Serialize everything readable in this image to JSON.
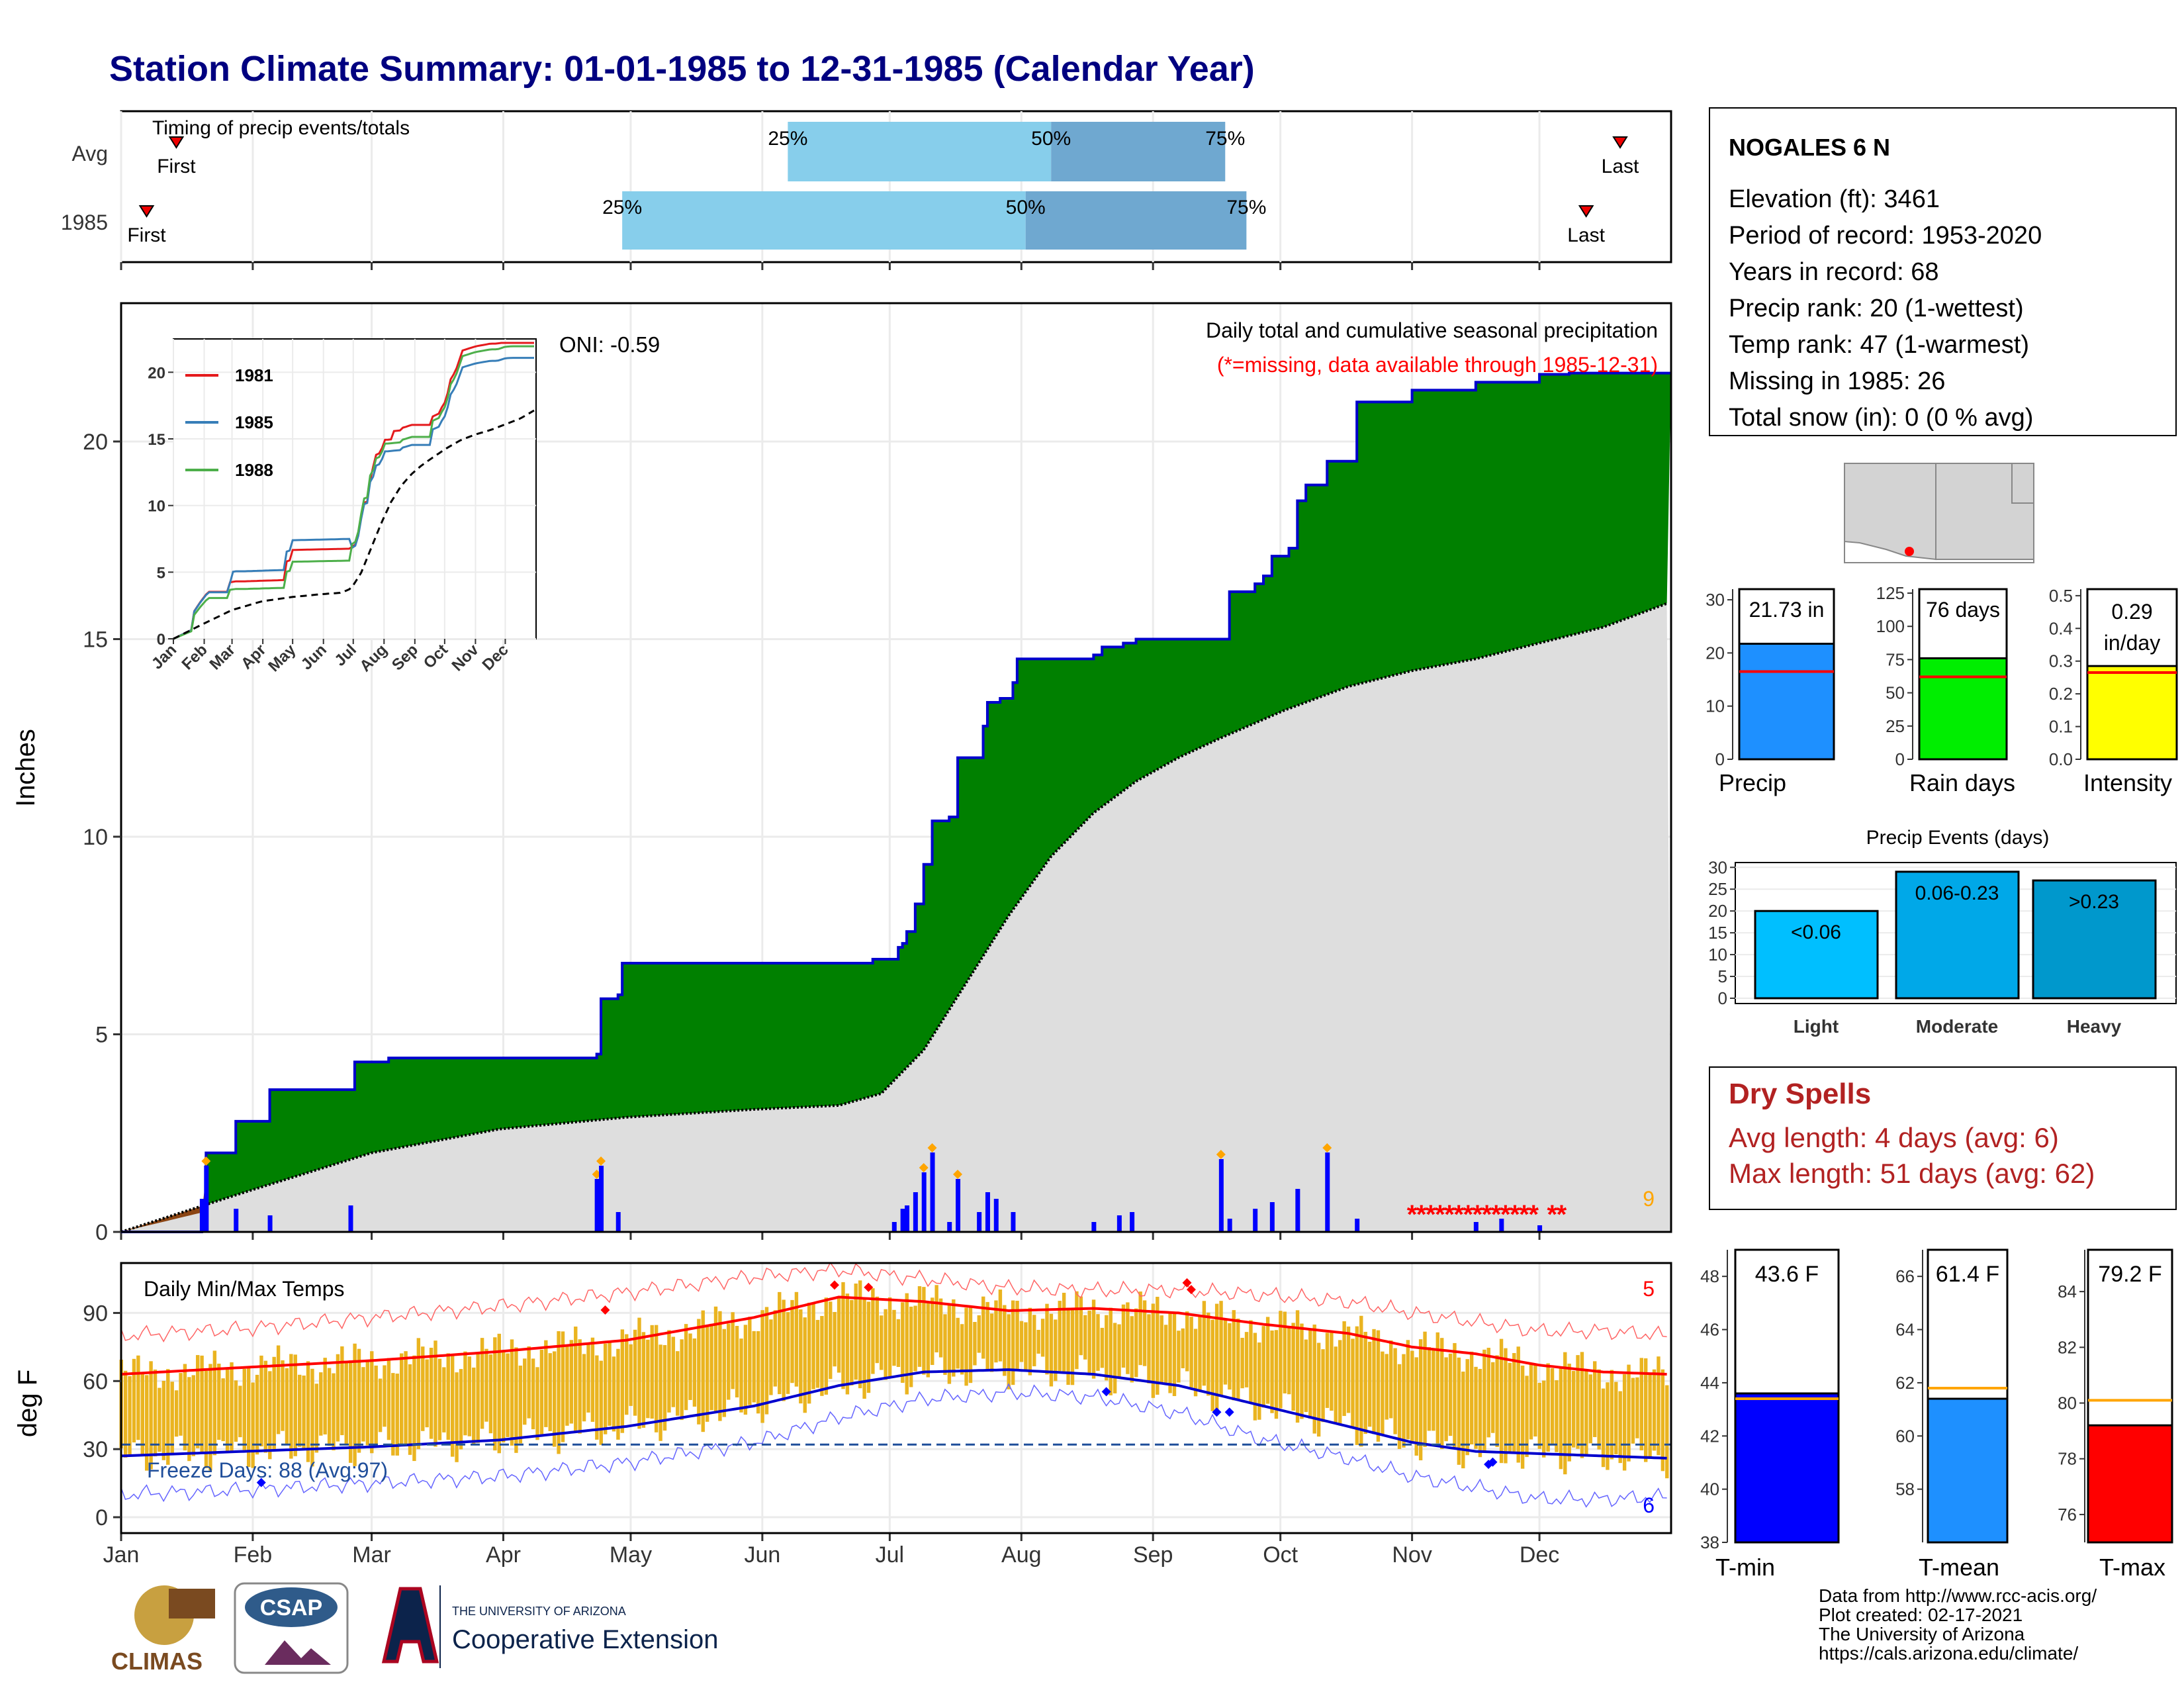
{
  "title": "Station Climate Summary: 01-01-1985 to 12-31-1985 (Calendar Year)",
  "timing_panel": {
    "label": "Timing of precip events/totals",
    "rows": [
      {
        "name": "Avg",
        "first_doy": 14,
        "last_doy": 354,
        "p25_doy": 158,
        "p50_doy": 220,
        "p75_doy": 261,
        "first_label": "First",
        "last_label": "Last",
        "p25_label": "25%",
        "p50_label": "50%",
        "p75_label": "75%"
      },
      {
        "name": "1985",
        "first_doy": 7,
        "last_doy": 346,
        "p25_doy": 119,
        "p50_doy": 214,
        "p75_doy": 266,
        "first_label": "First",
        "last_label": "Last",
        "p25_label": "25%",
        "p50_label": "50%",
        "p75_label": "75%"
      }
    ]
  },
  "main_panel": {
    "ylabel": "Inches",
    "annotation_title": "Daily total and cumulative seasonal precipitation",
    "annotation_missing": "(*=missing, data available through 1985-12-31)",
    "oni": "ONI: -0.59",
    "count_label": "9",
    "yticks": [
      "0",
      "5",
      "10",
      "15",
      "20"
    ]
  },
  "inset": {
    "series_names": [
      "1981",
      "1985",
      "1988"
    ],
    "yticks": [
      "0",
      "5",
      "10",
      "15",
      "20"
    ],
    "xticks": [
      "Jan",
      "Feb",
      "Mar",
      "Apr",
      "May",
      "Jun",
      "Jul",
      "Aug",
      "Sep",
      "Oct",
      "Nov",
      "Dec"
    ]
  },
  "temp_panel": {
    "title": "Daily Min/Max Temps",
    "ylabel": "deg F",
    "freeze_label": "Freeze Days: 88 (Avg:97)",
    "max_count": "5",
    "min_count": "6",
    "yticks": [
      "0",
      "30",
      "60",
      "90"
    ]
  },
  "months": [
    "Jan",
    "Feb",
    "Mar",
    "Apr",
    "May",
    "Jun",
    "Jul",
    "Aug",
    "Sep",
    "Oct",
    "Nov",
    "Dec"
  ],
  "station_info": {
    "name": "NOGALES 6 N",
    "lines": [
      "Elevation (ft): 3461",
      "Period of record: 1953-2020",
      "Years in record: 68",
      "Precip rank: 20 (1-wettest)",
      "Temp rank: 47 (1-warmest)",
      "Missing in 1985: 26",
      "Total snow (in): 0 (0 % avg)"
    ]
  },
  "bar_panels": [
    {
      "label": "Precip",
      "value_label": "21.73 in",
      "value": 21.73,
      "avg": 16.5,
      "ylim": [
        0,
        32
      ],
      "ticks": [
        "0",
        "10",
        "20",
        "30"
      ],
      "color": "#1e90ff"
    },
    {
      "label": "Rain days",
      "value_label": "76 days",
      "value": 76,
      "avg": 62,
      "ylim": [
        0,
        128
      ],
      "ticks": [
        "0",
        "25",
        "50",
        "75",
        "100",
        "125"
      ],
      "color": "#00ee00"
    },
    {
      "label": "Intensity",
      "value_label_1": "0.29",
      "value_label_2": "in/day",
      "value": 0.285,
      "avg": 0.265,
      "ylim": [
        0,
        0.52
      ],
      "ticks": [
        "0.0",
        "0.1",
        "0.2",
        "0.3",
        "0.4",
        "0.5"
      ],
      "color": "#ffff00"
    }
  ],
  "events_panel": {
    "title": "Precip Events (days)",
    "ticks": [
      "0",
      "5",
      "10",
      "15",
      "20",
      "25",
      "30"
    ],
    "bars": [
      {
        "category": "Light",
        "label": "<0.06",
        "value": 20,
        "color": "#00bfff"
      },
      {
        "category": "Moderate",
        "label": "0.06-0.23",
        "value": 29,
        "color": "#00a8e8"
      },
      {
        "category": "Heavy",
        "label": ">0.23",
        "value": 27,
        "color": "#0098cc"
      }
    ]
  },
  "dry_spells": {
    "title": "Dry Spells",
    "line1": "Avg length: 4 days (avg: 6)",
    "line2": "Max length: 51 days (avg: 62)"
  },
  "temp_bars": [
    {
      "label": "T-min",
      "value_label": "43.6 F",
      "value": 43.6,
      "avg": 43.4,
      "ylim": [
        38,
        49
      ],
      "ticks": [
        "38",
        "40",
        "42",
        "44",
        "46",
        "48"
      ],
      "color": "#0000ff"
    },
    {
      "label": "T-mean",
      "value_label": "61.4 F",
      "value": 61.4,
      "avg": 61.8,
      "ylim": [
        56,
        67
      ],
      "ticks": [
        "58",
        "60",
        "62",
        "64",
        "66"
      ],
      "color": "#1e90ff"
    },
    {
      "label": "T-max",
      "value_label": "79.2 F",
      "value": 79.2,
      "avg": 80.1,
      "ylim": [
        75,
        85.5
      ],
      "ticks": [
        "76",
        "78",
        "80",
        "82",
        "84"
      ],
      "color": "#ff0000"
    }
  ],
  "footer": {
    "lines": [
      "Data from http://www.rcc-acis.org/",
      "Plot created: 02-17-2021",
      "The University of Arizona",
      "https://cals.arizona.edu/climate/"
    ],
    "logo_climas": "CLIMAS",
    "logo_csap": "CSAP",
    "logo_uofa_1": "THE UNIVERSITY OF ARIZONA",
    "logo_uofa_2": "Cooperative Extension"
  },
  "chart_data": [
    {
      "type": "area",
      "title": "Daily total and cumulative seasonal precipitation",
      "ylabel": "Inches",
      "ylim": [
        0,
        23.5
      ],
      "series": [
        {
          "name": "cumulative",
          "x_doy": [
            1,
            20,
            21,
            28,
            36,
            55,
            56,
            64,
            72,
            73,
            113,
            114,
            118,
            119,
            121,
            178,
            184,
            185,
            186,
            188,
            190,
            192,
            196,
            198,
            204,
            205,
            208,
            209,
            211,
            212,
            216,
            230,
            232,
            237,
            240,
            260,
            262,
            268,
            270,
            272,
            276,
            278,
            280,
            285,
            292,
            305,
            320,
            327,
            335,
            342,
            365
          ],
          "values": [
            0,
            0.7,
            2.0,
            2.8,
            3.6,
            3.6,
            4.3,
            4.4,
            4.4,
            4.4,
            4.5,
            5.9,
            6.0,
            6.8,
            6.8,
            6.9,
            7.2,
            7.3,
            7.6,
            8.3,
            9.3,
            10.4,
            10.5,
            12.0,
            12.8,
            13.4,
            13.5,
            13.5,
            13.9,
            14.5,
            14.5,
            14.6,
            14.8,
            14.9,
            15.0,
            15.0,
            16.2,
            16.4,
            16.6,
            17.1,
            17.3,
            18.5,
            18.9,
            19.5,
            21.0,
            21.3,
            21.5,
            21.5,
            21.7,
            21.73,
            21.73
          ]
        },
        {
          "name": "average cumulative",
          "x_doy": [
            1,
            30,
            60,
            90,
            120,
            150,
            170,
            180,
            190,
            200,
            210,
            220,
            230,
            240,
            250,
            260,
            275,
            290,
            305,
            320,
            335,
            350,
            365
          ],
          "values": [
            0,
            1.0,
            2.0,
            2.6,
            2.9,
            3.1,
            3.2,
            3.5,
            4.6,
            6.3,
            8.0,
            9.5,
            10.6,
            11.4,
            12.0,
            12.5,
            13.2,
            13.8,
            14.2,
            14.5,
            14.9,
            15.3,
            15.9
          ]
        }
      ]
    },
    {
      "type": "bar",
      "title": "Daily precipitation",
      "x_doy": [
        20,
        21,
        28,
        36,
        55,
        113,
        114,
        118,
        183,
        185,
        186,
        188,
        190,
        192,
        196,
        198,
        203,
        205,
        207,
        211,
        230,
        236,
        239,
        260,
        262,
        268,
        272,
        278,
        285,
        292,
        320,
        326,
        335
      ],
      "values": [
        0.5,
        1.0,
        0.35,
        0.25,
        0.4,
        0.8,
        1.0,
        0.3,
        0.15,
        0.35,
        0.4,
        0.6,
        0.9,
        1.2,
        0.15,
        0.8,
        0.3,
        0.6,
        0.5,
        0.3,
        0.15,
        0.25,
        0.3,
        1.1,
        0.2,
        0.35,
        0.45,
        0.65,
        1.2,
        0.2,
        0.15,
        0.2,
        0.1
      ]
    },
    {
      "type": "line",
      "title": "Daily Min/Max Temps",
      "ylabel": "deg F",
      "ylim": [
        -7,
        112
      ],
      "series": [
        {
          "name": "avg max",
          "x_doy": [
            1,
            30,
            60,
            90,
            120,
            150,
            170,
            190,
            210,
            230,
            250,
            270,
            290,
            305,
            320,
            335,
            350,
            365
          ],
          "values": [
            63,
            66,
            69,
            73,
            78,
            88,
            97,
            95,
            91,
            92,
            90,
            85,
            81,
            75,
            72,
            67,
            64,
            63
          ]
        },
        {
          "name": "avg min",
          "x_doy": [
            1,
            30,
            60,
            90,
            120,
            150,
            170,
            190,
            210,
            230,
            250,
            270,
            290,
            305,
            320,
            335,
            350,
            365
          ],
          "values": [
            27,
            29,
            31,
            34,
            40,
            49,
            58,
            64,
            65,
            63,
            58,
            49,
            40,
            33,
            29,
            28,
            27,
            26
          ]
        },
        {
          "name": "record max",
          "x_doy": [
            1,
            30,
            60,
            90,
            120,
            150,
            170,
            190,
            210,
            230,
            250,
            270,
            290,
            305,
            320,
            335,
            350,
            365
          ],
          "values": [
            80,
            83,
            88,
            93,
            99,
            106,
            109,
            105,
            101,
            100,
            100,
            98,
            95,
            90,
            86,
            82,
            82,
            80
          ]
        },
        {
          "name": "record min",
          "x_doy": [
            1,
            30,
            60,
            90,
            120,
            150,
            170,
            190,
            210,
            230,
            250,
            270,
            290,
            305,
            320,
            335,
            350,
            365
          ],
          "values": [
            10,
            12,
            15,
            18,
            24,
            33,
            44,
            52,
            55,
            53,
            46,
            34,
            26,
            18,
            13,
            8,
            8,
            9
          ]
        }
      ],
      "freeze_line": 32
    }
  ]
}
